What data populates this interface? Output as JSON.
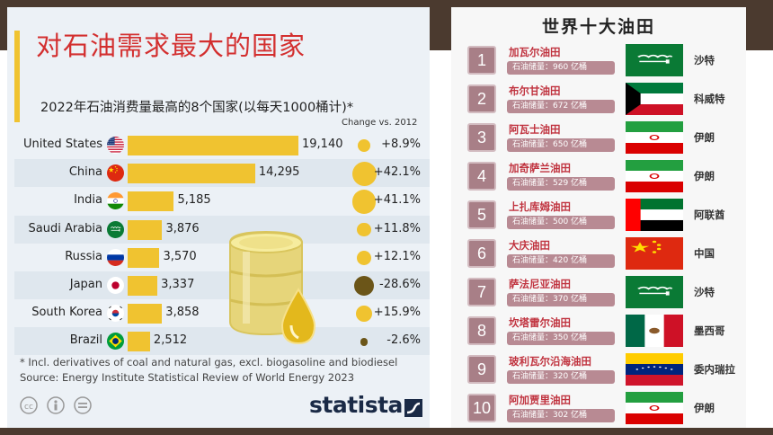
{
  "left_panel": {
    "title": "对石油需求最大的国家",
    "subtitle": "2022年石油消费量最高的8个国家(以每天1000桶计)*",
    "change_header": "Change vs. 2012",
    "footnote_1": "* Incl. derivatives of coal and natural gas, excl. biogasoline and biodiesel",
    "footnote_2": "Source: Energy Institute Statistical Review of World Energy 2023",
    "brand": "statista",
    "colors": {
      "bar": "#f0c330",
      "title": "#d32f2f",
      "negative_bubble": "#6b5518"
    }
  },
  "chart_data": {
    "type": "bar",
    "orientation": "horizontal",
    "title": "对石油需求最大的国家",
    "subtitle": "2022年石油消费量最高的8个国家(以每天1000桶计)*",
    "categories": [
      "United States",
      "China",
      "India",
      "Saudi Arabia",
      "Russia",
      "Japan",
      "South Korea",
      "Brazil"
    ],
    "values": [
      19140,
      14295,
      5185,
      3876,
      3570,
      3337,
      3858,
      2512
    ],
    "value_labels": [
      "19,140",
      "14,295",
      "5,185",
      "3,876",
      "3,570",
      "3,337",
      "3,858",
      "2,512"
    ],
    "flags": [
      "us-flag-icon",
      "cn-flag-icon",
      "in-flag-icon",
      "sa-flag-icon",
      "ru-flag-icon",
      "jp-flag-icon",
      "kr-flag-icon",
      "br-flag-icon"
    ],
    "change_vs_2012": [
      8.9,
      42.1,
      41.1,
      11.8,
      12.1,
      -28.6,
      15.9,
      -2.6
    ],
    "change_labels": [
      "+8.9%",
      "+42.1%",
      "+41.1%",
      "+11.8%",
      "+12.1%",
      "-28.6%",
      "+15.9%",
      "-2.6%"
    ],
    "xlim": [
      0,
      19140
    ]
  },
  "right_panel": {
    "title": "世界十大油田",
    "fields": [
      {
        "rank": "1",
        "name": "加瓦尔油田",
        "reserve": "石油储量：960 亿桶",
        "country": "沙特",
        "flag": "sa-flag-icon"
      },
      {
        "rank": "2",
        "name": "布尔甘油田",
        "reserve": "石油储量：672 亿桶",
        "country": "科威特",
        "flag": "kw-flag-icon"
      },
      {
        "rank": "3",
        "name": "阿瓦士油田",
        "reserve": "石油储量：650 亿桶",
        "country": "伊朗",
        "flag": "ir-flag-icon"
      },
      {
        "rank": "4",
        "name": "加奇萨兰油田",
        "reserve": "石油储量：529 亿桶",
        "country": "伊朗",
        "flag": "ir-flag-icon"
      },
      {
        "rank": "5",
        "name": "上扎库姆油田",
        "reserve": "石油储量：500 亿桶",
        "country": "阿联酋",
        "flag": "ae-flag-icon"
      },
      {
        "rank": "6",
        "name": "大庆油田",
        "reserve": "石油储量：420 亿桶",
        "country": "中国",
        "flag": "cn-flag-icon"
      },
      {
        "rank": "7",
        "name": "萨法尼亚油田",
        "reserve": "石油储量：370 亿桶",
        "country": "沙特",
        "flag": "sa-flag-icon"
      },
      {
        "rank": "8",
        "name": "坎塔雷尔油田",
        "reserve": "石油储量：350 亿桶",
        "country": "墨西哥",
        "flag": "mx-flag-icon"
      },
      {
        "rank": "9",
        "name": "玻利瓦尔沿海油田",
        "reserve": "石油储量：320 亿桶",
        "country": "委内瑞拉",
        "flag": "ve-flag-icon"
      },
      {
        "rank": "10",
        "name": "阿加贾里油田",
        "reserve": "石油储量：302 亿桶",
        "country": "伊朗",
        "flag": "ir-flag-icon"
      }
    ]
  }
}
